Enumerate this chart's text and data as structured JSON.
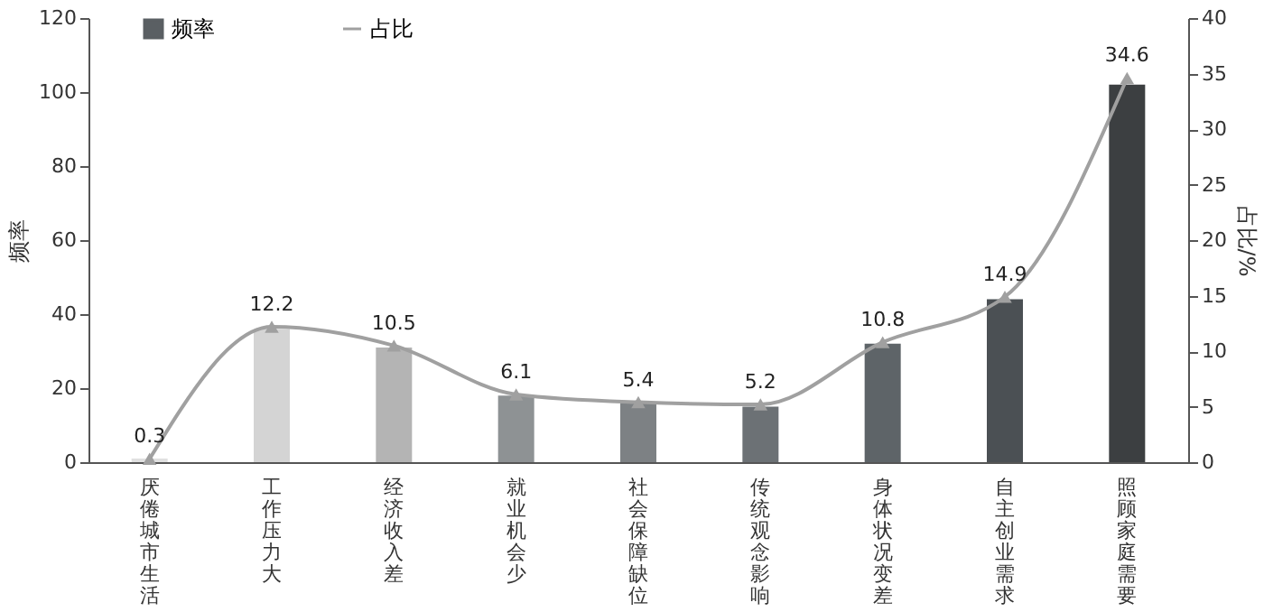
{
  "chart_data": {
    "type": "bar",
    "categories": [
      "厌倦城市生活",
      "工作压力大",
      "经济收入差",
      "就业机会少",
      "社会保障缺位",
      "传统观念影响",
      "身体状况变差",
      "自主创业需求",
      "照顾家庭需要"
    ],
    "ylabel": "频率",
    "y2label": "占比/%",
    "ylim": [
      0,
      120
    ],
    "yticks": [
      0,
      20,
      40,
      60,
      80,
      100,
      120
    ],
    "y2lim": [
      0,
      40
    ],
    "y2ticks": [
      0,
      5,
      10,
      15,
      20,
      25,
      30,
      35,
      40
    ],
    "legend": "top left",
    "grid": false,
    "series": [
      {
        "name": "频率",
        "color": "#5a5f63",
        "colors": [
          "#e0e0e0",
          "#d4d4d4",
          "#b4b4b4",
          "#8e9294",
          "#7d8184",
          "#6c7175",
          "#5e6468",
          "#4b5054",
          "#3c3f41"
        ],
        "values": [
          1,
          36,
          31,
          18,
          16,
          15,
          32,
          44,
          102
        ]
      },
      {
        "name": "占比",
        "type": "line",
        "axis": "y2",
        "color": "#a0a0a0",
        "marker": "triangle",
        "data_labels": true,
        "values": [
          0.3,
          12.2,
          10.5,
          6.1,
          5.4,
          5.2,
          10.8,
          14.9,
          34.6
        ]
      }
    ]
  }
}
